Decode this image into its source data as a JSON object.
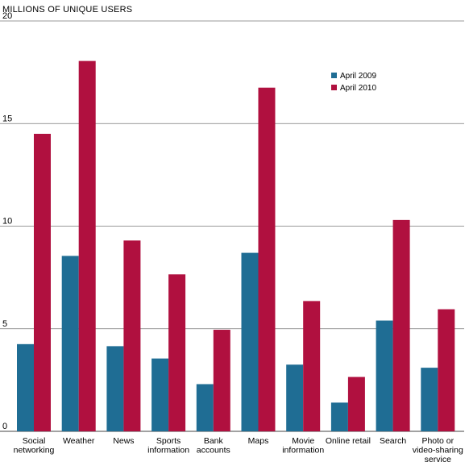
{
  "chart_data": {
    "type": "bar",
    "ylabel": "MILLIONS OF UNIQUE USERS",
    "ylim": [
      0,
      20
    ],
    "yticks": [
      "0",
      "5",
      "10",
      "15",
      "20"
    ],
    "grid": true,
    "legend_position": "top-right",
    "categories": [
      [
        "Social",
        "networking"
      ],
      [
        "Weather"
      ],
      [
        "News"
      ],
      [
        "Sports",
        "information"
      ],
      [
        "Bank",
        "accounts"
      ],
      [
        "Maps"
      ],
      [
        "Movie",
        "information"
      ],
      [
        "Online retail"
      ],
      [
        "Search"
      ],
      [
        "Photo or",
        "video-sharing",
        "service"
      ]
    ],
    "series": [
      {
        "name": "April 2009",
        "color": "#1f6d94",
        "values": [
          4.25,
          8.55,
          4.15,
          3.55,
          2.3,
          8.7,
          3.25,
          1.4,
          5.4,
          3.1
        ]
      },
      {
        "name": "April 2010",
        "color": "#b0103f",
        "values": [
          14.5,
          18.05,
          9.3,
          7.65,
          4.95,
          16.75,
          6.35,
          2.65,
          10.3,
          5.95
        ]
      }
    ]
  }
}
